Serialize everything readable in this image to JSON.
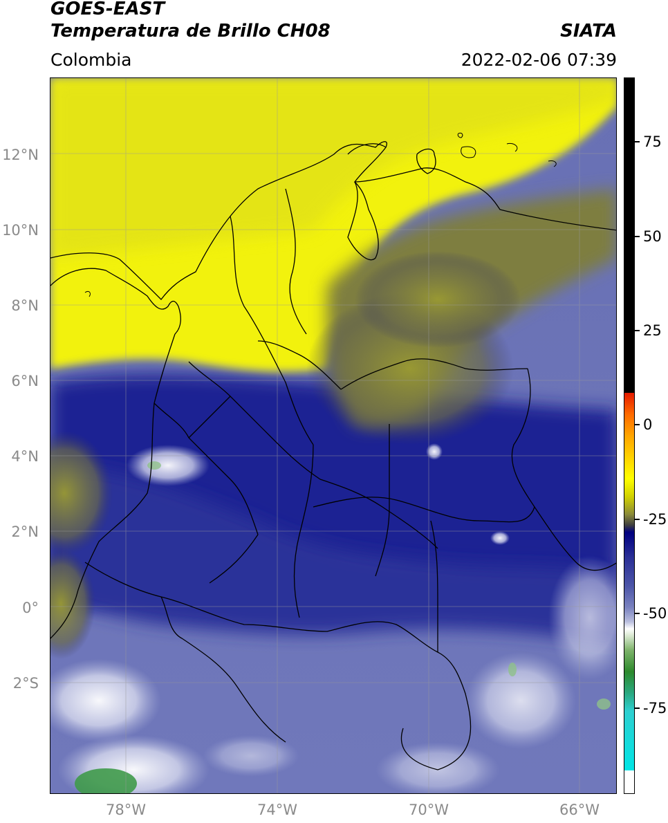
{
  "header": {
    "satellite": "GOES-EAST",
    "product": "Temperatura de Brillo CH08",
    "region": "Colombia",
    "agency": "SIATA",
    "timestamp": "2022-02-06 07:39"
  },
  "map": {
    "lon_range": [
      -80,
      -65
    ],
    "lat_range": [
      -5,
      14
    ],
    "lat_ticks": [
      {
        "value": 12,
        "label": "12°N"
      },
      {
        "value": 10,
        "label": "10°N"
      },
      {
        "value": 8,
        "label": "8°N"
      },
      {
        "value": 6,
        "label": "6°N"
      },
      {
        "value": 4,
        "label": "4°N"
      },
      {
        "value": 2,
        "label": "2°N"
      },
      {
        "value": 0,
        "label": "0°"
      },
      {
        "value": -2,
        "label": "2°S"
      }
    ],
    "lon_ticks": [
      {
        "value": -78,
        "label": "78°W"
      },
      {
        "value": -74,
        "label": "74°W"
      },
      {
        "value": -70,
        "label": "70°W"
      },
      {
        "value": -66,
        "label": "66°W"
      }
    ],
    "colors": {
      "warm_yellow": "#ffff00",
      "olive": "#8f8f2e",
      "cold_navy": "#1b1f8f",
      "cold_lavender": "#6b73b8",
      "coldest_white": "#f2f2fa",
      "coldest_green": "#3f9a4a",
      "border_color": "#000000"
    }
  },
  "colorbar": {
    "range": [
      -100,
      90
    ],
    "ticks": [
      {
        "value": 75,
        "label": "75"
      },
      {
        "value": 50,
        "label": "50"
      },
      {
        "value": 25,
        "label": "25"
      },
      {
        "value": 0,
        "label": "0"
      },
      {
        "value": -25,
        "label": "-25"
      },
      {
        "value": -50,
        "label": "-50"
      },
      {
        "value": -75,
        "label": "-75"
      }
    ]
  }
}
